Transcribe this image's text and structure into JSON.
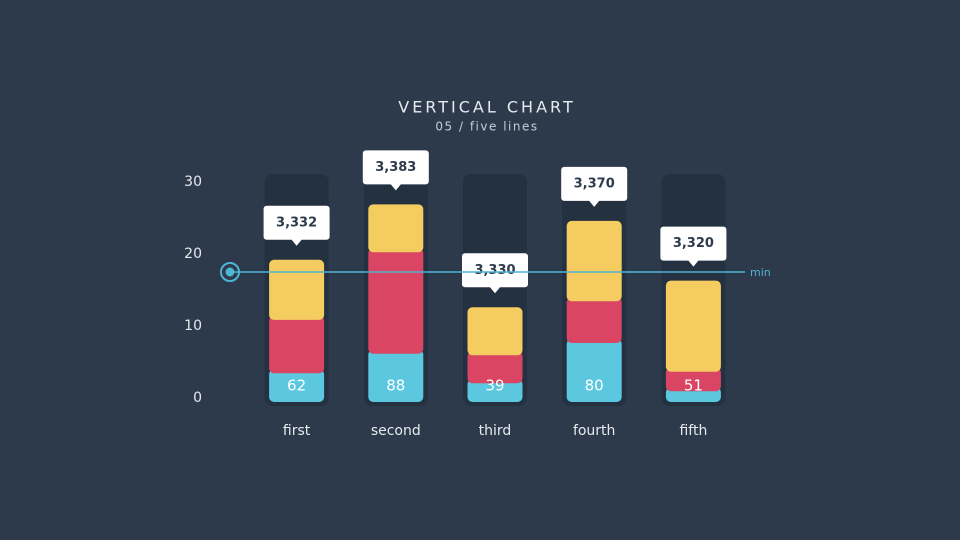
{
  "chart_data": {
    "type": "stacked_bar",
    "title": "VERTICAL CHART",
    "subtitle": "05 / five lines",
    "categories": [
      "first",
      "second",
      "third",
      "fourth",
      "fifth"
    ],
    "series": [
      {
        "color": "#5bc8e0",
        "values": [
          4.0,
          6.7,
          2.6,
          8.2,
          1.5
        ]
      },
      {
        "color": "#d94563",
        "values": [
          7.4,
          14.1,
          3.9,
          5.8,
          2.7
        ]
      },
      {
        "color": "#f5cc5f",
        "values": [
          7.8,
          6.1,
          6.1,
          10.6,
          12.1
        ]
      }
    ],
    "inner_labels": [
      62,
      88,
      39,
      80,
      51
    ],
    "callouts": [
      "3,332",
      "3,383",
      "3,330",
      "3,370",
      "3,320"
    ],
    "threshold": {
      "value": 17.5,
      "label": "min",
      "color": "#4fb3d3"
    },
    "ylim": [
      0,
      30
    ],
    "yticks": [
      0,
      10,
      20,
      30
    ]
  }
}
